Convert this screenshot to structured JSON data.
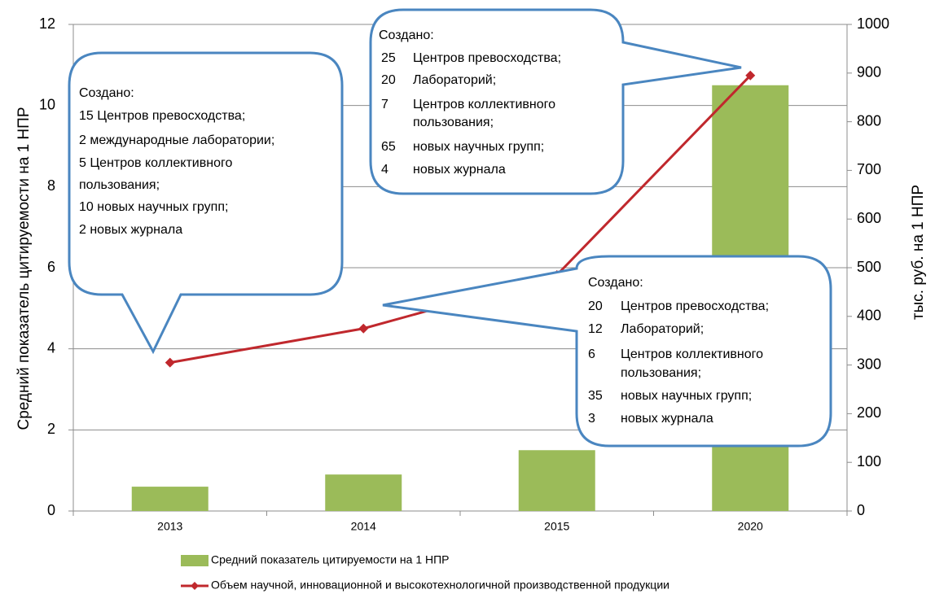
{
  "chart_data": {
    "type": "bar_line",
    "categories": [
      "2013",
      "2014",
      "2015",
      "2020"
    ],
    "series": [
      {
        "name": "Средний показатель цитируемости на 1 НПР",
        "type": "bar",
        "color": "#9bbb59",
        "values": [
          0.6,
          0.9,
          1.5,
          10.5
        ]
      },
      {
        "name": "Объем научной, инновационной и высокотехнологичной производственной продукции",
        "type": "line",
        "axis": "y2",
        "color": "#c0282d",
        "values": [
          305,
          375,
          485,
          895
        ]
      }
    ],
    "ylabel": "Средний показатель цитируемости на 1 НПР",
    "y2label": "тыс. руб. на 1 НПР",
    "ylim": [
      0,
      12
    ],
    "yticks": [
      0,
      2,
      4,
      6,
      8,
      10,
      12
    ],
    "y2lim": [
      0,
      1000
    ],
    "y2ticks": [
      0,
      100,
      200,
      300,
      400,
      500,
      600,
      700,
      800,
      900,
      1000
    ],
    "grid": true,
    "legend": "bottom",
    "annotations": [
      {
        "heading": "Создано:",
        "items": [
          [
            "15 Центров превосходства;"
          ],
          [
            "2 международные лаборатории;"
          ],
          [
            "5 Центров коллективного"
          ],
          [
            "пользования;"
          ],
          [
            "10 новых научных групп;"
          ],
          [
            "2 новых журнала"
          ]
        ]
      },
      {
        "heading": "Создано:",
        "items": [
          [
            "25",
            "Центров превосходства;"
          ],
          [
            "20",
            "Лабораторий;"
          ],
          [
            "7",
            "Центров коллективного"
          ],
          [
            "пользования;"
          ],
          [
            "65",
            "новых научных групп;"
          ],
          [
            "4",
            "новых журнала"
          ]
        ]
      },
      {
        "heading": "Создано:",
        "items": [
          [
            "20",
            "Центров превосходства;"
          ],
          [
            "12",
            "Лабораторий;"
          ],
          [
            "6",
            "Центров коллективного"
          ],
          [
            "пользования;"
          ],
          [
            "35",
            "новых научных групп;"
          ],
          [
            "3",
            "новых журнала"
          ]
        ]
      }
    ]
  }
}
